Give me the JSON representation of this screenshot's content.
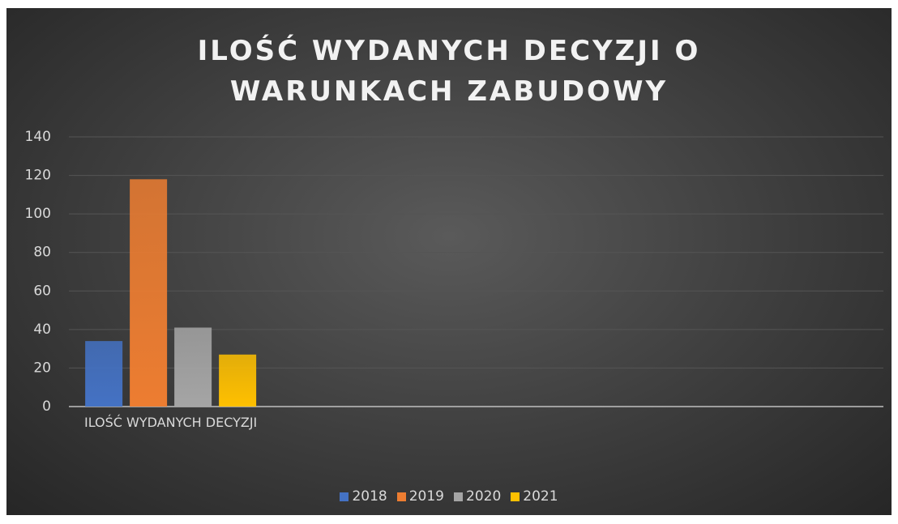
{
  "chart_data": {
    "type": "bar",
    "title": "ILOŚĆ WYDANYCH DECYZJI O WARUNKACH ZABUDOWY",
    "categories": [
      "ILOŚĆ WYDANYCH DECYZJI",
      null,
      null,
      null
    ],
    "series": [
      {
        "name": "2018",
        "color": "#4472c4",
        "values": [
          34,
          null,
          null,
          null
        ]
      },
      {
        "name": "2019",
        "color": "#ed7d31",
        "values": [
          118,
          null,
          null,
          null
        ]
      },
      {
        "name": "2020",
        "color": "#a5a5a5",
        "values": [
          41,
          null,
          null,
          null
        ]
      },
      {
        "name": "2021",
        "color": "#ffc000",
        "values": [
          27,
          null,
          null,
          null
        ]
      }
    ],
    "ylim": [
      0,
      140
    ],
    "yticks": [
      0,
      20,
      40,
      60,
      80,
      100,
      120,
      140
    ],
    "grid": true,
    "legend": "bottom"
  }
}
